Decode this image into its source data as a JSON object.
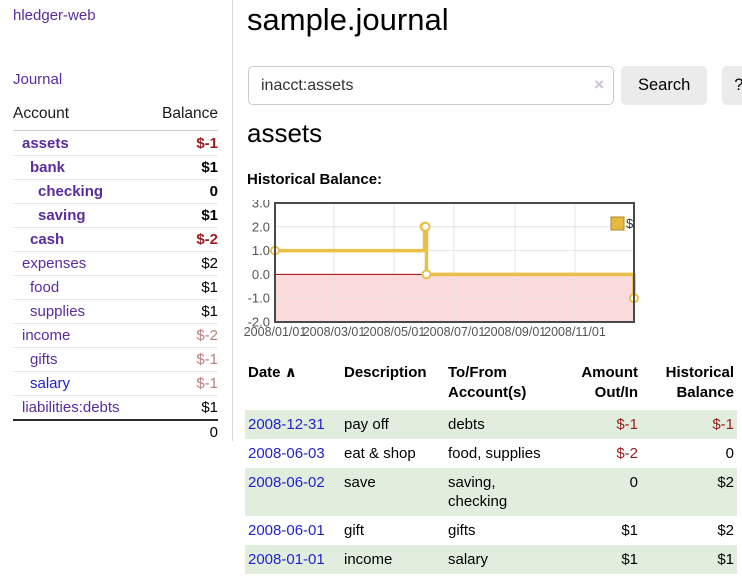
{
  "app": {
    "title": "hledger-web",
    "nav_journal": "Journal"
  },
  "sidebar": {
    "header": {
      "account": "Account",
      "balance": "Balance"
    },
    "accounts": [
      {
        "name": "assets",
        "balance": "$-1",
        "depth": 1,
        "bold": true,
        "neg": "neg-strong",
        "link": "purple"
      },
      {
        "name": "bank",
        "balance": "$1",
        "depth": 2,
        "bold": true,
        "neg": "",
        "link": "purple"
      },
      {
        "name": "checking",
        "balance": "0",
        "depth": 3,
        "bold": true,
        "neg": "",
        "link": "purple"
      },
      {
        "name": "saving",
        "balance": "$1",
        "depth": 3,
        "bold": true,
        "neg": "",
        "link": "purple"
      },
      {
        "name": "cash",
        "balance": "$-2",
        "depth": 2,
        "bold": true,
        "neg": "neg-strong",
        "link": "purple"
      },
      {
        "name": "expenses",
        "balance": "$2",
        "depth": 1,
        "bold": false,
        "neg": "",
        "link": "purple"
      },
      {
        "name": "food",
        "balance": "$1",
        "depth": 2,
        "bold": false,
        "neg": "",
        "link": "purple"
      },
      {
        "name": "supplies",
        "balance": "$1",
        "depth": 2,
        "bold": false,
        "neg": "",
        "link": "purple"
      },
      {
        "name": "income",
        "balance": "$-2",
        "depth": 1,
        "bold": false,
        "neg": "neg-soft",
        "link": "purple"
      },
      {
        "name": "gifts",
        "balance": "$-1",
        "depth": 2,
        "bold": false,
        "neg": "neg-soft",
        "link": "purple"
      },
      {
        "name": "salary",
        "balance": "$-1",
        "depth": 2,
        "bold": false,
        "neg": "neg-soft",
        "link": "blue"
      },
      {
        "name": "liabilities:debts",
        "balance": "$1",
        "depth": 1,
        "bold": false,
        "neg": "",
        "link": "purple"
      }
    ],
    "total": "0"
  },
  "header": {
    "title": "sample.journal"
  },
  "search": {
    "value": "inacct:assets",
    "clear_icon": "×",
    "button_label": "Search",
    "help_label": "?"
  },
  "account_page": {
    "title": "assets",
    "chart_label": "Historical Balance:"
  },
  "chart_data": {
    "type": "line",
    "step": true,
    "title": "Historical Balance",
    "series": [
      {
        "name": "$",
        "color": "#e8c04a",
        "points": [
          [
            "2008-01-01",
            1
          ],
          [
            "2008-06-01",
            2
          ],
          [
            "2008-06-02",
            2
          ],
          [
            "2008-06-03",
            0
          ],
          [
            "2008-12-31",
            -1
          ]
        ]
      }
    ],
    "xlim": [
      "2008-01-01",
      "2008-12-31"
    ],
    "ylim": [
      -2,
      3
    ],
    "yticks": [
      3,
      2,
      1,
      0,
      -1,
      -2
    ],
    "ytick_labels": [
      "3.0",
      "2.0",
      "1.0",
      "0.0",
      "-1.0",
      "-2.0"
    ],
    "xticks": [
      "2008-01-01",
      "2008-03-01",
      "2008-05-01",
      "2008-07-01",
      "2008-09-01",
      "2008-11-01"
    ],
    "xtick_labels": [
      "2008/01/01",
      "2008/03/01",
      "2008/05/01",
      "2008/07/01",
      "2008/09/01",
      "2008/11/01"
    ],
    "grid": true,
    "legend_position": "top-right",
    "legend_swatch_fill": "#e4ba41",
    "legend_swatch_border": "#a8892c",
    "negative_region_color": "#fadadb",
    "zero_line_color": "#a40000"
  },
  "register": {
    "columns": [
      "Date",
      "Description",
      "To/From Account(s)",
      "Amount Out/In",
      "Historical Balance"
    ],
    "sort_indicator": "∧",
    "rows": [
      {
        "date": "2008-12-31",
        "description": "pay off",
        "accounts": "debts",
        "amount": "$-1",
        "balance": "$-1",
        "amount_neg": true,
        "balance_neg": true
      },
      {
        "date": "2008-06-03",
        "description": "eat & shop",
        "accounts": "food, supplies",
        "amount": "$-2",
        "balance": "0",
        "amount_neg": true,
        "balance_neg": false
      },
      {
        "date": "2008-06-02",
        "description": "save",
        "accounts": "saving, checking",
        "amount": "0",
        "balance": "$2",
        "amount_neg": false,
        "balance_neg": false
      },
      {
        "date": "2008-06-01",
        "description": "gift",
        "accounts": "gifts",
        "amount": "$1",
        "balance": "$2",
        "amount_neg": false,
        "balance_neg": false
      },
      {
        "date": "2008-01-01",
        "description": "income",
        "accounts": "salary",
        "amount": "$1",
        "balance": "$1",
        "amount_neg": false,
        "balance_neg": false
      }
    ]
  }
}
